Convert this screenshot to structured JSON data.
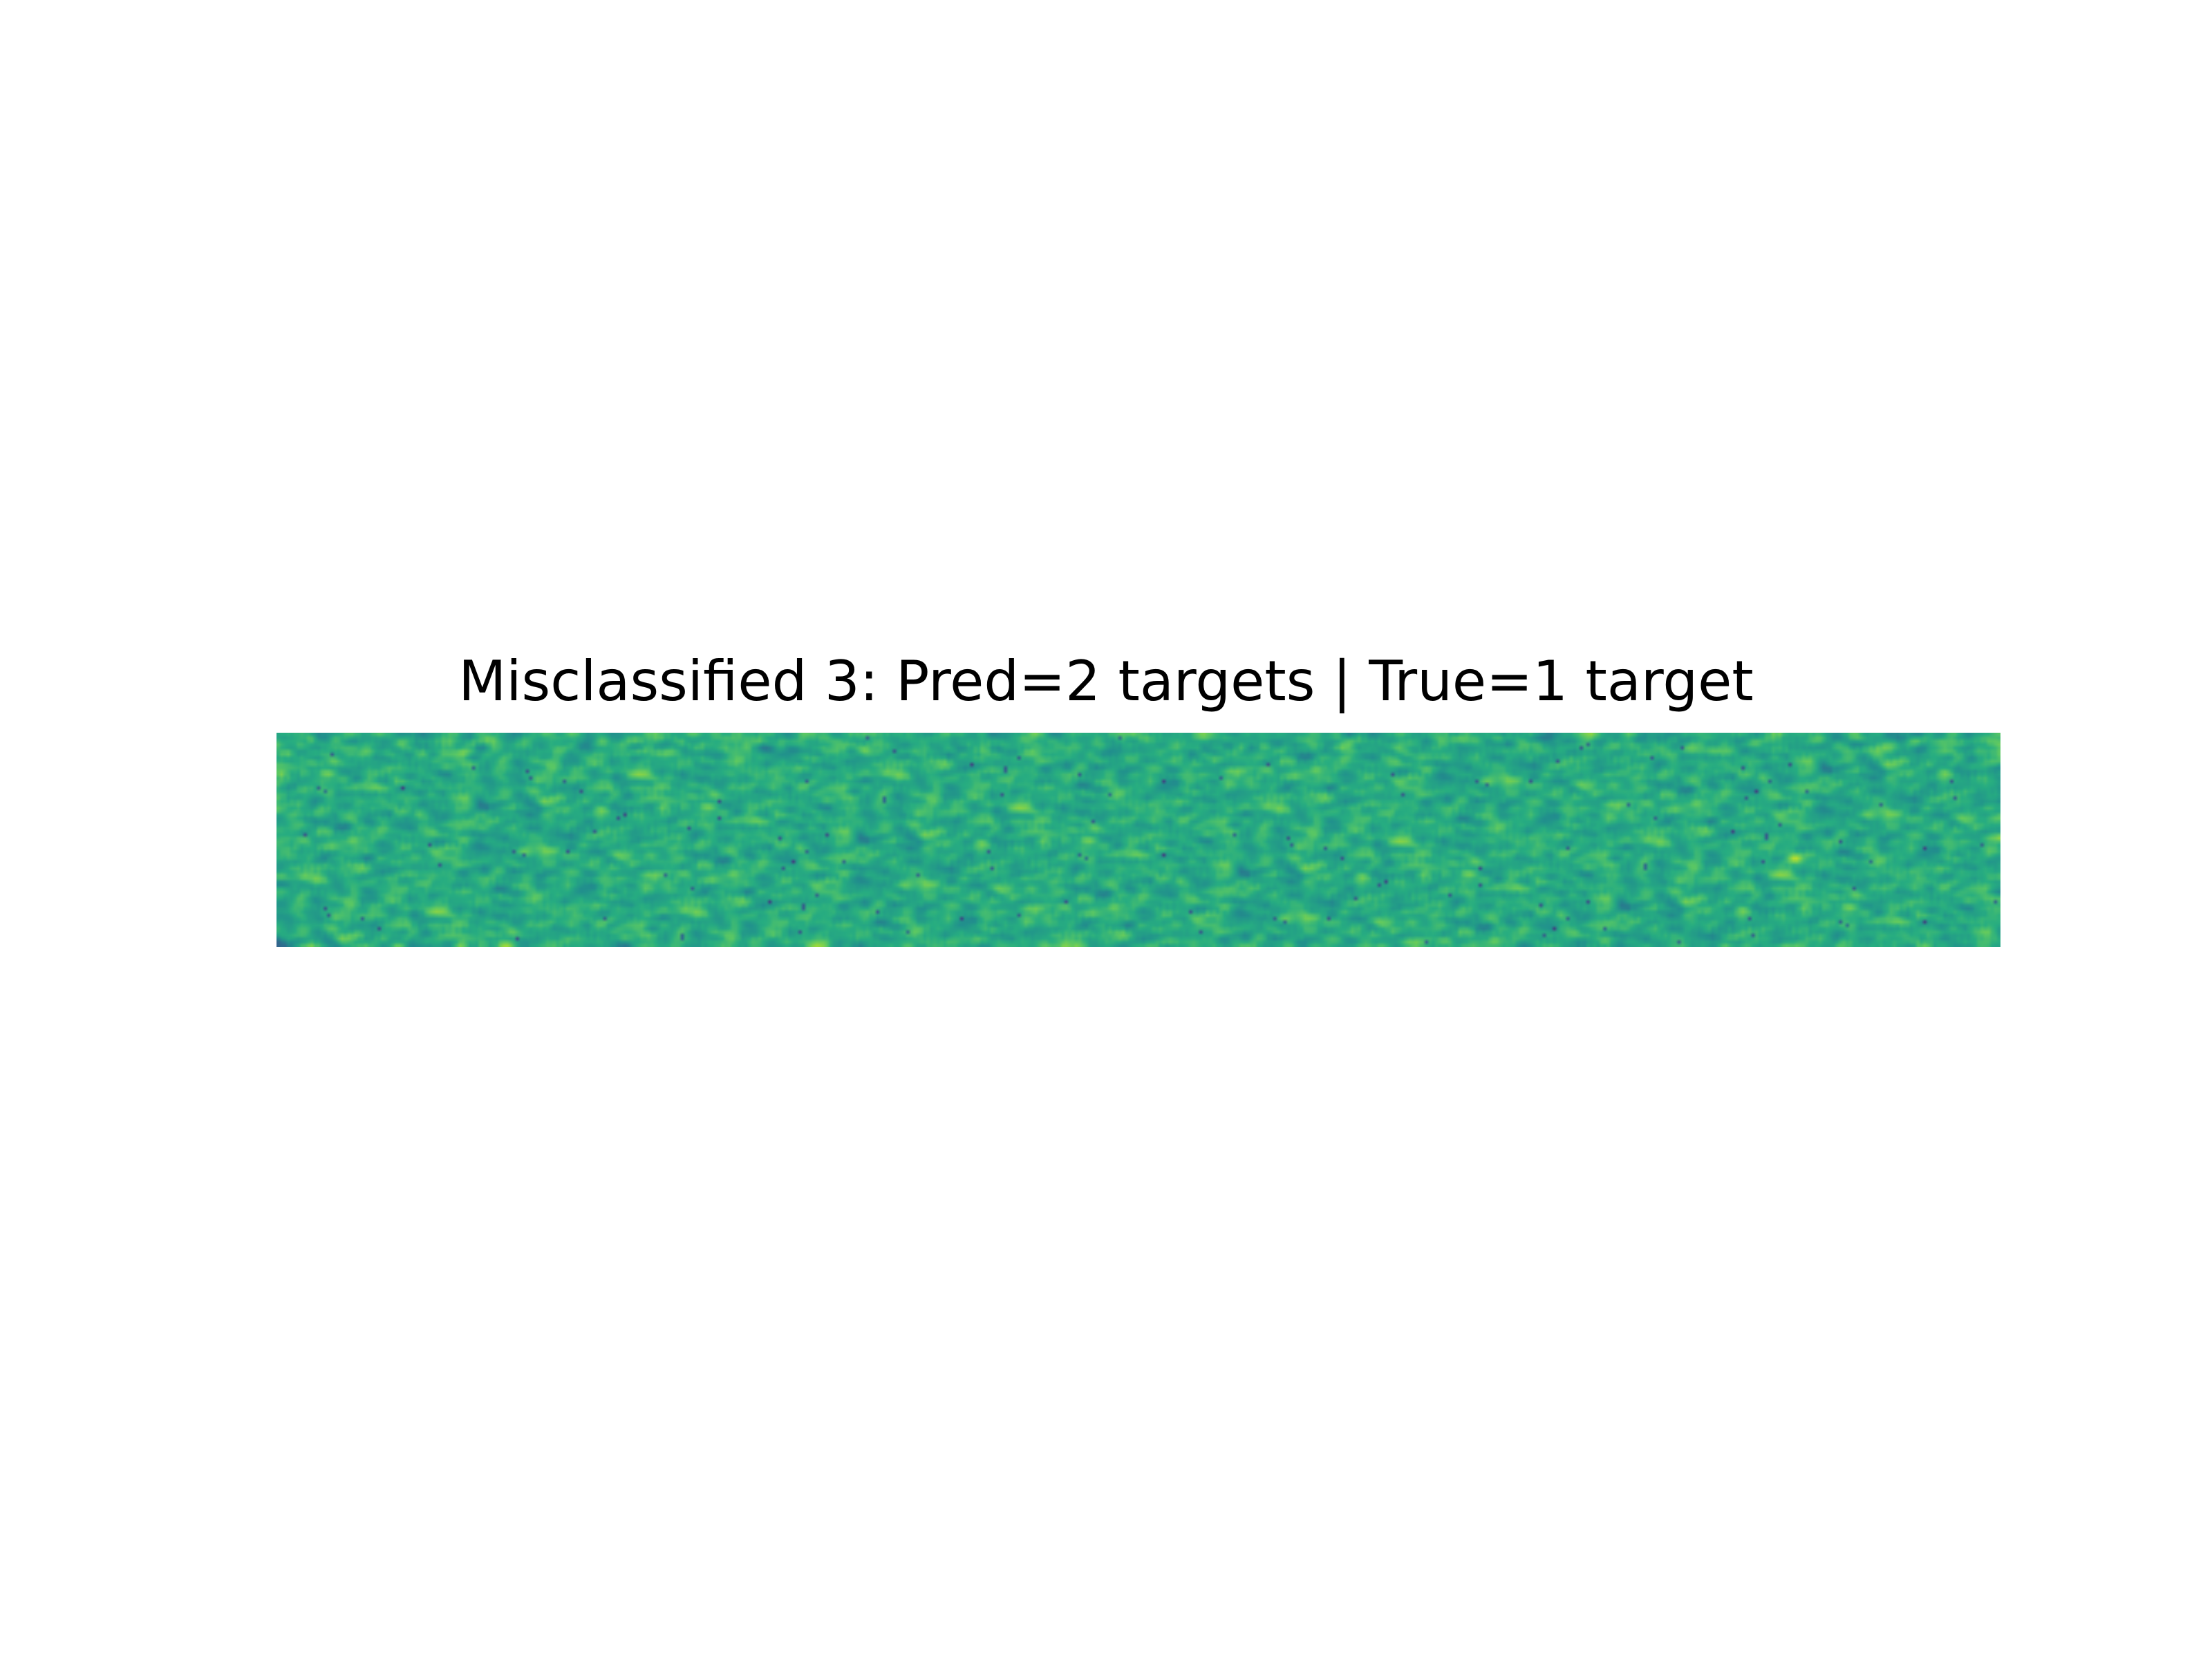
{
  "chart_data": {
    "type": "heatmap",
    "title": "Misclassified 3: Pred=2 targets | True=1 target",
    "colormap": "viridis",
    "axes_visible": false,
    "xlabel": "",
    "ylabel": "",
    "grid": false,
    "legend": "none",
    "grid_shape": {
      "rows": 64,
      "cols": 512
    },
    "value_range": [
      0.0,
      1.0
    ],
    "background_mean": 0.62,
    "background_spread": 0.12,
    "hotspots": [
      {
        "col_frac": 0.88,
        "row_frac": 0.58,
        "value": 0.92
      }
    ]
  }
}
